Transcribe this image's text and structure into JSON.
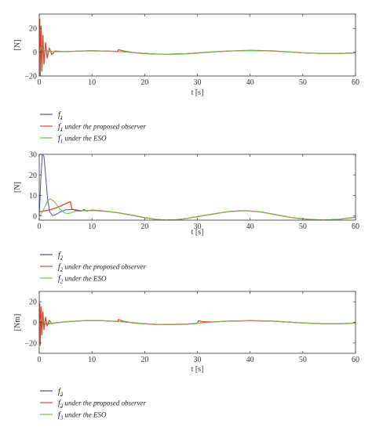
{
  "chart_data": [
    {
      "type": "line",
      "xlabel": "t [s]",
      "ylabel": "[N]",
      "xlim": [
        0,
        60
      ],
      "ylim": [
        -20,
        32
      ],
      "xticks": [
        "0",
        "10",
        "20",
        "30",
        "40",
        "50",
        "60"
      ],
      "yticks": [
        "−20",
        "0",
        "20"
      ],
      "ytick_values": [
        -20,
        0,
        20
      ],
      "legend_placement": "below",
      "series": [
        {
          "name": "f",
          "sub": "1",
          "hat": false,
          "rest": "",
          "color": "#4d4dac",
          "x": [
            0,
            0.5,
            1,
            2,
            3,
            5,
            8,
            10,
            12,
            15,
            18,
            20,
            22,
            25,
            28,
            30,
            33,
            36,
            40,
            44,
            48,
            50,
            54,
            57,
            60
          ],
          "y": [
            0,
            1.5,
            1.2,
            0.6,
            0.4,
            0.5,
            1.0,
            1.2,
            1.0,
            0.6,
            -0.3,
            -1.0,
            -1.5,
            -1.6,
            -1.2,
            -0.6,
            0.3,
            1.0,
            1.4,
            1.0,
            0.0,
            -0.6,
            -1.2,
            -1.1,
            -0.5
          ]
        },
        {
          "name": "f",
          "sub": "1",
          "hat": true,
          "rest": " under the proposed observer",
          "color": "#e0472b",
          "x": [
            0,
            0.1,
            0.2,
            0.35,
            0.5,
            0.7,
            0.9,
            1.2,
            1.5,
            1.9,
            2.4,
            3,
            4,
            5,
            8,
            10,
            12,
            14.9,
            15,
            15.3,
            16,
            18,
            20,
            22,
            25,
            28,
            30,
            33,
            36,
            40,
            44,
            48,
            50,
            54,
            57,
            60
          ],
          "y": [
            0,
            28,
            -20,
            22,
            -16,
            14,
            -10,
            8,
            -5,
            3.5,
            -2,
            1,
            0.6,
            0.5,
            1.0,
            1.2,
            1.0,
            0.6,
            2.2,
            1.8,
            1.0,
            -0.4,
            -1.1,
            -1.6,
            -1.7,
            -1.3,
            -0.7,
            0.3,
            1.0,
            1.5,
            1.1,
            0.1,
            -0.5,
            -1.2,
            -1.2,
            -0.6
          ]
        },
        {
          "name": "f",
          "sub": "1",
          "hat": true,
          "rest": " under the ESO",
          "color": "#6dbf4a",
          "x": [
            0,
            0.3,
            0.6,
            1,
            1.5,
            2,
            3,
            5,
            8,
            10,
            12,
            15,
            18,
            20,
            22,
            25,
            28,
            30,
            33,
            36,
            40,
            44,
            48,
            50,
            54,
            57,
            60
          ],
          "y": [
            0,
            4,
            2.5,
            1.2,
            0.6,
            0.4,
            0.4,
            0.5,
            1.0,
            1.2,
            1.0,
            0.6,
            -0.3,
            -1.0,
            -1.5,
            -1.6,
            -1.2,
            -0.6,
            0.3,
            1.0,
            1.4,
            1.0,
            0.0,
            -0.6,
            -1.2,
            -1.1,
            -0.5
          ]
        }
      ]
    },
    {
      "type": "line",
      "xlabel": "t [s]",
      "ylabel": "[N]",
      "xlim": [
        0,
        60
      ],
      "ylim": [
        -2,
        30
      ],
      "xticks": [
        "0",
        "10",
        "20",
        "30",
        "40",
        "50",
        "60"
      ],
      "yticks": [
        "0",
        "10",
        "20",
        "30"
      ],
      "ytick_values": [
        0,
        10,
        20,
        30
      ],
      "legend_placement": "below",
      "series": [
        {
          "name": "f",
          "sub": "2",
          "hat": false,
          "rest": "",
          "color": "#4d4dac",
          "x": [
            0,
            0.3,
            0.6,
            0.9,
            1.2,
            1.6,
            2,
            2.5,
            3,
            4,
            5,
            6,
            7,
            8,
            10,
            12,
            15,
            18,
            20,
            22,
            24,
            26,
            28,
            30,
            33,
            36,
            39,
            42,
            45,
            48,
            51,
            54,
            57,
            60
          ],
          "y": [
            0,
            18,
            30,
            29,
            20,
            8,
            2,
            0.2,
            0.5,
            2,
            3,
            3.2,
            3,
            2.6,
            2.6,
            2.4,
            1.6,
            0.2,
            -0.8,
            -1.6,
            -2.0,
            -1.8,
            -1.2,
            -0.3,
            1.0,
            2.2,
            2.6,
            2.0,
            0.6,
            -0.8,
            -1.6,
            -2.0,
            -1.6,
            -0.6
          ]
        },
        {
          "name": "f",
          "sub": "2",
          "hat": true,
          "rest": " under the proposed observer",
          "color": "#e0472b",
          "x": [
            0,
            1,
            2,
            3,
            4,
            5,
            5.9,
            6.2,
            7,
            8,
            8.5,
            9,
            10,
            12,
            15,
            18,
            20,
            22,
            24,
            26,
            28,
            30,
            33,
            36,
            39,
            42,
            45,
            48,
            51,
            54,
            57,
            60
          ],
          "y": [
            2,
            2.5,
            3,
            3.8,
            4.8,
            6,
            7,
            3.5,
            2.5,
            2.4,
            3.2,
            2.4,
            2.9,
            2.5,
            1.6,
            0.2,
            -0.8,
            -1.6,
            -2.0,
            -1.8,
            -1.2,
            -0.3,
            1.0,
            2.2,
            2.6,
            2.0,
            0.6,
            -0.8,
            -1.6,
            -2.0,
            -1.6,
            -0.6
          ]
        },
        {
          "name": "f",
          "sub": "2",
          "hat": true,
          "rest": " under the ESO",
          "color": "#6dbf4a",
          "x": [
            0,
            0.5,
            1,
            1.5,
            2,
            2.5,
            3,
            3.5,
            4,
            4.5,
            5,
            5.5,
            6,
            6.5,
            7,
            8,
            10,
            12,
            15,
            18,
            20,
            22,
            24,
            26,
            28,
            30,
            33,
            36,
            39,
            42,
            45,
            48,
            51,
            54,
            57,
            60
          ],
          "y": [
            0,
            1.5,
            4,
            7,
            8.3,
            7.8,
            6.5,
            4.8,
            3.2,
            2.0,
            1.4,
            1.2,
            1.5,
            2.0,
            2.4,
            2.6,
            2.6,
            2.4,
            1.6,
            0.2,
            -0.8,
            -1.6,
            -2.0,
            -1.8,
            -1.2,
            -0.3,
            1.0,
            2.2,
            2.6,
            2.0,
            0.6,
            -0.8,
            -1.6,
            -2.0,
            -1.6,
            -0.6
          ]
        }
      ]
    },
    {
      "type": "line",
      "xlabel": "t [s]",
      "ylabel": "[Nm]",
      "xlim": [
        0,
        60
      ],
      "ylim": [
        -30,
        30
      ],
      "xticks": [
        "0",
        "10",
        "20",
        "30",
        "40",
        "50",
        "60"
      ],
      "yticks": [
        "−20",
        "0",
        "20"
      ],
      "ytick_values": [
        -20,
        0,
        20
      ],
      "legend_placement": "below",
      "series": [
        {
          "name": "f",
          "sub": "3",
          "hat": false,
          "rest": "",
          "color": "#4d4dac",
          "x": [
            0,
            0.5,
            1,
            2,
            3,
            5,
            8,
            10,
            12,
            15,
            18,
            20,
            22,
            25,
            28,
            30,
            33,
            36,
            40,
            44,
            48,
            50,
            54,
            57,
            60
          ],
          "y": [
            0,
            -1,
            -1.5,
            -1.2,
            -0.6,
            0.5,
            1.5,
            1.8,
            1.6,
            0.8,
            -0.4,
            -1.2,
            -1.8,
            -2.0,
            -1.6,
            -0.8,
            0.4,
            1.2,
            1.6,
            1.2,
            0.0,
            -0.6,
            -1.4,
            -1.3,
            -0.6
          ]
        },
        {
          "name": "f",
          "sub": "3",
          "hat": true,
          "rest": " under the proposed observer",
          "color": "#e0472b",
          "x": [
            0,
            0.1,
            0.2,
            0.35,
            0.5,
            0.7,
            0.9,
            1.2,
            1.5,
            1.9,
            2.4,
            3,
            4,
            5,
            8,
            10,
            12,
            14.9,
            15,
            15.3,
            16,
            18,
            20,
            22,
            25,
            28,
            30,
            30.2,
            31,
            33,
            36,
            40,
            44,
            48,
            50,
            54,
            57,
            60
          ],
          "y": [
            0,
            18,
            -22,
            15,
            -12,
            10,
            -7,
            5,
            -3.5,
            2,
            -1.2,
            -0.5,
            0,
            0.5,
            1.5,
            1.8,
            1.6,
            0.8,
            2.8,
            2.2,
            1.0,
            -0.6,
            -1.4,
            -2.0,
            -2.1,
            -1.7,
            -1.0,
            1.5,
            0.6,
            0.4,
            1.2,
            1.7,
            1.3,
            0.1,
            -0.5,
            -1.4,
            -1.4,
            -0.7
          ]
        },
        {
          "name": "f",
          "sub": "3",
          "hat": true,
          "rest": " under the ESO",
          "color": "#6dbf4a",
          "x": [
            0,
            0.3,
            0.6,
            1,
            1.5,
            2,
            3,
            5,
            8,
            10,
            12,
            15,
            18,
            20,
            22,
            25,
            28,
            30,
            33,
            36,
            40,
            44,
            48,
            50,
            54,
            57,
            60
          ],
          "y": [
            0,
            3,
            1.5,
            0.5,
            -0.5,
            -1.0,
            -0.6,
            0.5,
            1.5,
            1.8,
            1.6,
            0.8,
            -0.4,
            -1.2,
            -1.8,
            -2.0,
            -1.6,
            -0.8,
            0.4,
            1.2,
            1.6,
            1.2,
            0.0,
            -0.6,
            -1.4,
            -1.3,
            -0.6
          ]
        }
      ]
    }
  ]
}
